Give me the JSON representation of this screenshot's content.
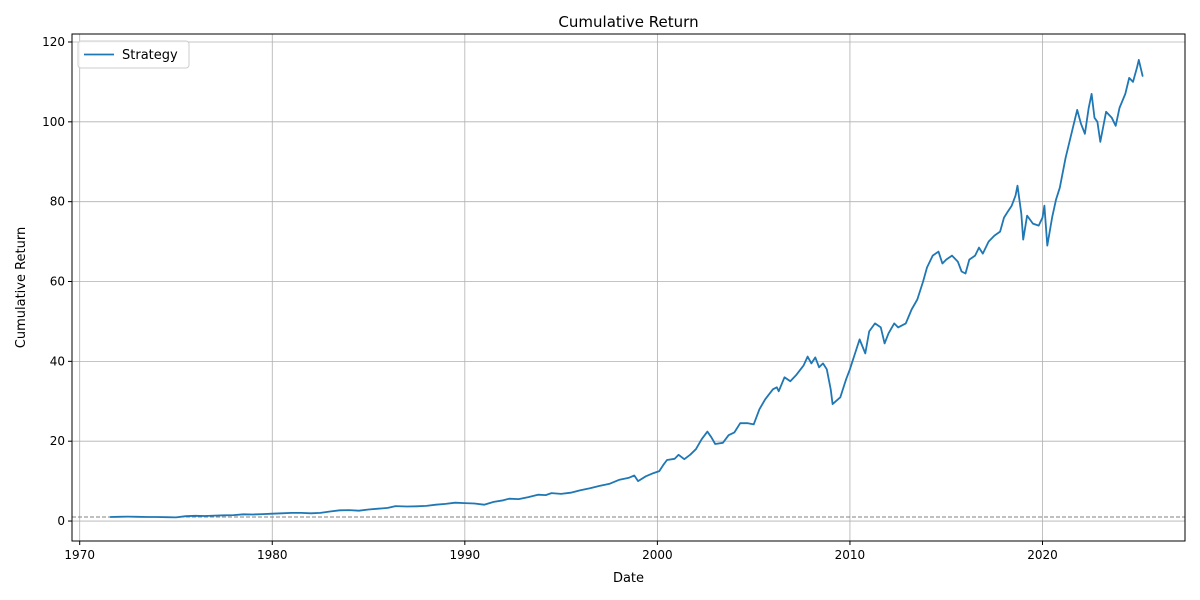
{
  "chart_data": {
    "type": "line",
    "title": "Cumulative Return",
    "xlabel": "Date",
    "ylabel": "Cumulative Return",
    "xlim": [
      1969.6,
      2027.4
    ],
    "ylim": [
      -5,
      122
    ],
    "x_ticks": [
      1970,
      1980,
      1990,
      2000,
      2010,
      2020
    ],
    "y_ticks": [
      0,
      20,
      40,
      60,
      80,
      100,
      120
    ],
    "grid": true,
    "legend": {
      "position": "top-left",
      "entries": [
        "Strategy"
      ]
    },
    "colors": {
      "series": "#1f77b4",
      "baseline": "#808080",
      "grid": "#b0b0b0"
    },
    "baseline": {
      "y": 1,
      "style": "dashed"
    },
    "series": [
      {
        "name": "Strategy",
        "points": [
          [
            1971.6,
            1.0
          ],
          [
            1972.0,
            1.05
          ],
          [
            1972.5,
            1.1
          ],
          [
            1973.0,
            1.05
          ],
          [
            1973.5,
            1.0
          ],
          [
            1974.0,
            1.0
          ],
          [
            1974.5,
            0.95
          ],
          [
            1975.0,
            0.9
          ],
          [
            1975.5,
            1.2
          ],
          [
            1976.0,
            1.3
          ],
          [
            1976.5,
            1.25
          ],
          [
            1977.0,
            1.35
          ],
          [
            1977.5,
            1.45
          ],
          [
            1978.0,
            1.5
          ],
          [
            1978.5,
            1.7
          ],
          [
            1979.0,
            1.65
          ],
          [
            1979.5,
            1.75
          ],
          [
            1980.0,
            1.85
          ],
          [
            1980.5,
            1.95
          ],
          [
            1981.0,
            2.05
          ],
          [
            1981.5,
            2.05
          ],
          [
            1982.0,
            1.95
          ],
          [
            1982.5,
            2.05
          ],
          [
            1983.0,
            2.4
          ],
          [
            1983.5,
            2.7
          ],
          [
            1984.0,
            2.75
          ],
          [
            1984.5,
            2.6
          ],
          [
            1985.0,
            2.9
          ],
          [
            1985.5,
            3.1
          ],
          [
            1986.0,
            3.3
          ],
          [
            1986.4,
            3.75
          ],
          [
            1987.0,
            3.65
          ],
          [
            1987.5,
            3.7
          ],
          [
            1988.0,
            3.8
          ],
          [
            1988.5,
            4.1
          ],
          [
            1989.0,
            4.3
          ],
          [
            1989.5,
            4.6
          ],
          [
            1990.0,
            4.5
          ],
          [
            1990.5,
            4.4
          ],
          [
            1991.0,
            4.1
          ],
          [
            1991.5,
            4.8
          ],
          [
            1992.0,
            5.2
          ],
          [
            1992.3,
            5.6
          ],
          [
            1992.8,
            5.5
          ],
          [
            1993.3,
            6.0
          ],
          [
            1993.8,
            6.6
          ],
          [
            1994.2,
            6.5
          ],
          [
            1994.5,
            7.0
          ],
          [
            1995.0,
            6.8
          ],
          [
            1995.5,
            7.1
          ],
          [
            1996.0,
            7.7
          ],
          [
            1996.5,
            8.2
          ],
          [
            1997.0,
            8.8
          ],
          [
            1997.5,
            9.3
          ],
          [
            1998.0,
            10.3
          ],
          [
            1998.5,
            10.8
          ],
          [
            1998.8,
            11.4
          ],
          [
            1999.0,
            10.0
          ],
          [
            1999.4,
            11.2
          ],
          [
            1999.8,
            12.0
          ],
          [
            2000.1,
            12.5
          ],
          [
            2000.3,
            14.0
          ],
          [
            2000.5,
            15.3
          ],
          [
            2000.9,
            15.6
          ],
          [
            2001.1,
            16.6
          ],
          [
            2001.4,
            15.5
          ],
          [
            2001.7,
            16.6
          ],
          [
            2002.0,
            18.0
          ],
          [
            2002.3,
            20.5
          ],
          [
            2002.6,
            22.4
          ],
          [
            2002.8,
            21.0
          ],
          [
            2003.0,
            19.3
          ],
          [
            2003.4,
            19.6
          ],
          [
            2003.7,
            21.5
          ],
          [
            2004.0,
            22.2
          ],
          [
            2004.3,
            24.5
          ],
          [
            2004.7,
            24.5
          ],
          [
            2005.0,
            24.2
          ],
          [
            2005.3,
            28.0
          ],
          [
            2005.6,
            30.5
          ],
          [
            2006.0,
            33.0
          ],
          [
            2006.2,
            33.5
          ],
          [
            2006.3,
            32.5
          ],
          [
            2006.6,
            36.0
          ],
          [
            2006.9,
            35.0
          ],
          [
            2007.2,
            36.5
          ],
          [
            2007.6,
            39.0
          ],
          [
            2007.8,
            41.2
          ],
          [
            2008.0,
            39.5
          ],
          [
            2008.2,
            41.0
          ],
          [
            2008.4,
            38.5
          ],
          [
            2008.6,
            39.5
          ],
          [
            2008.8,
            38.0
          ],
          [
            2009.0,
            33.0
          ],
          [
            2009.1,
            29.3
          ],
          [
            2009.5,
            31.0
          ],
          [
            2009.8,
            35.5
          ],
          [
            2010.0,
            38.0
          ],
          [
            2010.3,
            42.5
          ],
          [
            2010.5,
            45.5
          ],
          [
            2010.8,
            42.0
          ],
          [
            2011.0,
            47.5
          ],
          [
            2011.3,
            49.5
          ],
          [
            2011.6,
            48.5
          ],
          [
            2011.8,
            44.5
          ],
          [
            2012.0,
            47.0
          ],
          [
            2012.3,
            49.5
          ],
          [
            2012.5,
            48.5
          ],
          [
            2012.9,
            49.5
          ],
          [
            2013.2,
            53.0
          ],
          [
            2013.5,
            55.5
          ],
          [
            2013.8,
            60.0
          ],
          [
            2014.0,
            63.5
          ],
          [
            2014.3,
            66.5
          ],
          [
            2014.6,
            67.5
          ],
          [
            2014.8,
            64.5
          ],
          [
            2015.0,
            65.5
          ],
          [
            2015.3,
            66.5
          ],
          [
            2015.6,
            65.0
          ],
          [
            2015.8,
            62.5
          ],
          [
            2016.0,
            62.0
          ],
          [
            2016.2,
            65.5
          ],
          [
            2016.5,
            66.5
          ],
          [
            2016.7,
            68.5
          ],
          [
            2016.9,
            67.0
          ],
          [
            2017.2,
            70.0
          ],
          [
            2017.5,
            71.5
          ],
          [
            2017.8,
            72.5
          ],
          [
            2018.0,
            76.0
          ],
          [
            2018.2,
            77.5
          ],
          [
            2018.4,
            79.0
          ],
          [
            2018.6,
            81.5
          ],
          [
            2018.7,
            84.0
          ],
          [
            2018.9,
            77.0
          ],
          [
            2019.0,
            70.5
          ],
          [
            2019.2,
            76.5
          ],
          [
            2019.5,
            74.5
          ],
          [
            2019.8,
            74.0
          ],
          [
            2020.0,
            76.0
          ],
          [
            2020.1,
            79.0
          ],
          [
            2020.25,
            69.0
          ],
          [
            2020.5,
            76.0
          ],
          [
            2020.7,
            80.5
          ],
          [
            2020.9,
            83.5
          ],
          [
            2021.2,
            91.0
          ],
          [
            2021.5,
            97.0
          ],
          [
            2021.8,
            103.0
          ],
          [
            2022.0,
            99.5
          ],
          [
            2022.2,
            97.0
          ],
          [
            2022.4,
            103.5
          ],
          [
            2022.55,
            107.0
          ],
          [
            2022.7,
            101.0
          ],
          [
            2022.85,
            100.0
          ],
          [
            2023.0,
            95.0
          ],
          [
            2023.3,
            102.5
          ],
          [
            2023.6,
            101.0
          ],
          [
            2023.8,
            99.0
          ],
          [
            2024.0,
            103.5
          ],
          [
            2024.3,
            107.0
          ],
          [
            2024.5,
            111.0
          ],
          [
            2024.7,
            110.0
          ],
          [
            2024.9,
            113.5
          ],
          [
            2025.0,
            115.5
          ],
          [
            2025.2,
            111.5
          ]
        ]
      }
    ]
  }
}
